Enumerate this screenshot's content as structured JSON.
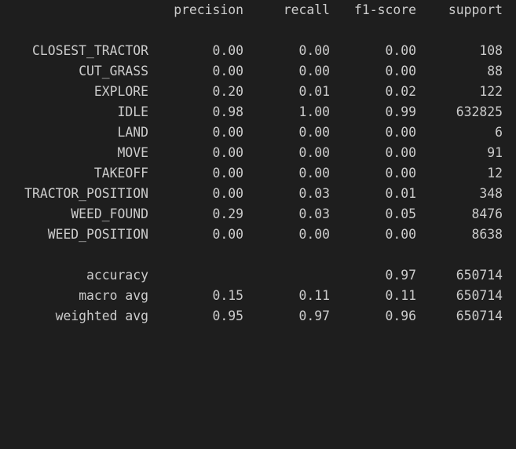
{
  "header": {
    "precision": "precision",
    "recall": "recall",
    "f1_score": "f1-score",
    "support": "support"
  },
  "rows": [
    {
      "label": "CLOSEST_TRACTOR",
      "precision": "0.00",
      "recall": "0.00",
      "f1": "0.00",
      "support": "108"
    },
    {
      "label": "CUT_GRASS",
      "precision": "0.00",
      "recall": "0.00",
      "f1": "0.00",
      "support": "88"
    },
    {
      "label": "EXPLORE",
      "precision": "0.20",
      "recall": "0.01",
      "f1": "0.02",
      "support": "122"
    },
    {
      "label": "IDLE",
      "precision": "0.98",
      "recall": "1.00",
      "f1": "0.99",
      "support": "632825"
    },
    {
      "label": "LAND",
      "precision": "0.00",
      "recall": "0.00",
      "f1": "0.00",
      "support": "6"
    },
    {
      "label": "MOVE",
      "precision": "0.00",
      "recall": "0.00",
      "f1": "0.00",
      "support": "91"
    },
    {
      "label": "TAKEOFF",
      "precision": "0.00",
      "recall": "0.00",
      "f1": "0.00",
      "support": "12"
    },
    {
      "label": "TRACTOR_POSITION",
      "precision": "0.00",
      "recall": "0.03",
      "f1": "0.01",
      "support": "348"
    },
    {
      "label": "WEED_FOUND",
      "precision": "0.29",
      "recall": "0.03",
      "f1": "0.05",
      "support": "8476"
    },
    {
      "label": "WEED_POSITION",
      "precision": "0.00",
      "recall": "0.00",
      "f1": "0.00",
      "support": "8638"
    }
  ],
  "summary": {
    "accuracy": {
      "label": "accuracy",
      "f1": "0.97",
      "support": "650714"
    },
    "macro_avg": {
      "label": "macro avg",
      "precision": "0.15",
      "recall": "0.11",
      "f1": "0.11",
      "support": "650714"
    },
    "weighted_avg": {
      "label": "weighted avg",
      "precision": "0.95",
      "recall": "0.97",
      "f1": "0.96",
      "support": "650714"
    }
  }
}
